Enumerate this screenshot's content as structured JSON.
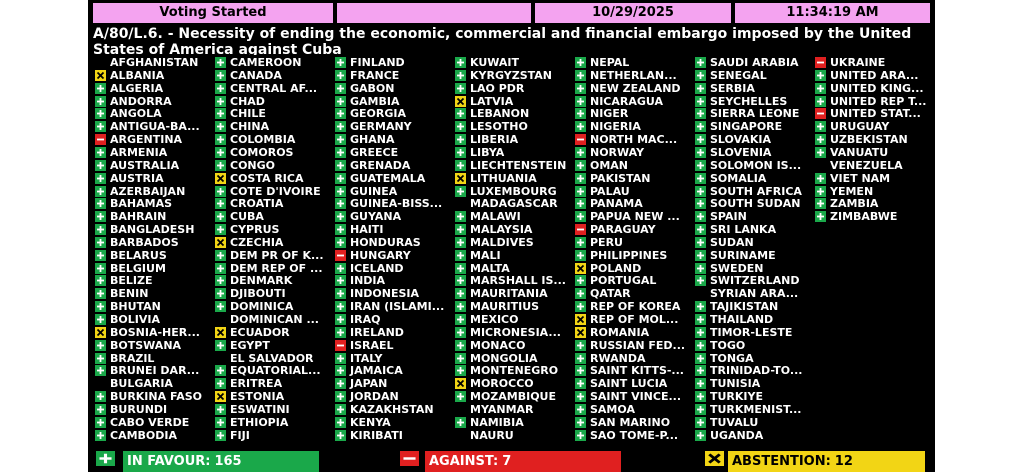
{
  "header": {
    "status": "Voting Started",
    "date": "10/29/2025",
    "time": "11:34:19 AM"
  },
  "title": "A/80/L.6. - Necessity of ending the economic, commercial and financial embargo imposed by the United States of America against Cuba",
  "members": [
    {
      "name": "AFGHANISTAN",
      "vote": null
    },
    {
      "name": "ALBANIA",
      "vote": "A"
    },
    {
      "name": "ALGERIA",
      "vote": "Y"
    },
    {
      "name": "ANDORRA",
      "vote": "Y"
    },
    {
      "name": "ANGOLA",
      "vote": "Y"
    },
    {
      "name": "ANTIGUA-BA...",
      "vote": "Y"
    },
    {
      "name": "ARGENTINA",
      "vote": "N"
    },
    {
      "name": "ARMENIA",
      "vote": "Y"
    },
    {
      "name": "AUSTRALIA",
      "vote": "Y"
    },
    {
      "name": "AUSTRIA",
      "vote": "Y"
    },
    {
      "name": "AZERBAIJAN",
      "vote": "Y"
    },
    {
      "name": "BAHAMAS",
      "vote": "Y"
    },
    {
      "name": "BAHRAIN",
      "vote": "Y"
    },
    {
      "name": "BANGLADESH",
      "vote": "Y"
    },
    {
      "name": "BARBADOS",
      "vote": "Y"
    },
    {
      "name": "BELARUS",
      "vote": "Y"
    },
    {
      "name": "BELGIUM",
      "vote": "Y"
    },
    {
      "name": "BELIZE",
      "vote": "Y"
    },
    {
      "name": "BENIN",
      "vote": "Y"
    },
    {
      "name": "BHUTAN",
      "vote": "Y"
    },
    {
      "name": "BOLIVIA",
      "vote": "Y"
    },
    {
      "name": "BOSNIA-HER...",
      "vote": "A"
    },
    {
      "name": "BOTSWANA",
      "vote": "Y"
    },
    {
      "name": "BRAZIL",
      "vote": "Y"
    },
    {
      "name": "BRUNEI DAR...",
      "vote": "Y"
    },
    {
      "name": "BULGARIA",
      "vote": null
    },
    {
      "name": "BURKINA FASO",
      "vote": "Y"
    },
    {
      "name": "BURUNDI",
      "vote": "Y"
    },
    {
      "name": "CABO VERDE",
      "vote": "Y"
    },
    {
      "name": "CAMBODIA",
      "vote": "Y"
    },
    {
      "name": "CAMEROON",
      "vote": "Y"
    },
    {
      "name": "CANADA",
      "vote": "Y"
    },
    {
      "name": "CENTRAL AF...",
      "vote": "Y"
    },
    {
      "name": "CHAD",
      "vote": "Y"
    },
    {
      "name": "CHILE",
      "vote": "Y"
    },
    {
      "name": "CHINA",
      "vote": "Y"
    },
    {
      "name": "COLOMBIA",
      "vote": "Y"
    },
    {
      "name": "COMOROS",
      "vote": "Y"
    },
    {
      "name": "CONGO",
      "vote": "Y"
    },
    {
      "name": "COSTA RICA",
      "vote": "A"
    },
    {
      "name": "COTE D'IVOIRE",
      "vote": "Y"
    },
    {
      "name": "CROATIA",
      "vote": "Y"
    },
    {
      "name": "CUBA",
      "vote": "Y"
    },
    {
      "name": "CYPRUS",
      "vote": "Y"
    },
    {
      "name": "CZECHIA",
      "vote": "A"
    },
    {
      "name": "DEM PR OF K...",
      "vote": "Y"
    },
    {
      "name": "DEM REP OF ...",
      "vote": "Y"
    },
    {
      "name": "DENMARK",
      "vote": "Y"
    },
    {
      "name": "DJIBOUTI",
      "vote": "Y"
    },
    {
      "name": "DOMINICA",
      "vote": "Y"
    },
    {
      "name": "DOMINICAN ...",
      "vote": null
    },
    {
      "name": "ECUADOR",
      "vote": "A"
    },
    {
      "name": "EGYPT",
      "vote": "Y"
    },
    {
      "name": "EL SALVADOR",
      "vote": null
    },
    {
      "name": "EQUATORIAL...",
      "vote": "Y"
    },
    {
      "name": "ERITREA",
      "vote": "Y"
    },
    {
      "name": "ESTONIA",
      "vote": "A"
    },
    {
      "name": "ESWATINI",
      "vote": "Y"
    },
    {
      "name": "ETHIOPIA",
      "vote": "Y"
    },
    {
      "name": "FIJI",
      "vote": "Y"
    },
    {
      "name": "FINLAND",
      "vote": "Y"
    },
    {
      "name": "FRANCE",
      "vote": "Y"
    },
    {
      "name": "GABON",
      "vote": "Y"
    },
    {
      "name": "GAMBIA",
      "vote": "Y"
    },
    {
      "name": "GEORGIA",
      "vote": "Y"
    },
    {
      "name": "GERMANY",
      "vote": "Y"
    },
    {
      "name": "GHANA",
      "vote": "Y"
    },
    {
      "name": "GREECE",
      "vote": "Y"
    },
    {
      "name": "GRENADA",
      "vote": "Y"
    },
    {
      "name": "GUATEMALA",
      "vote": "Y"
    },
    {
      "name": "GUINEA",
      "vote": "Y"
    },
    {
      "name": "GUINEA-BISS...",
      "vote": "Y"
    },
    {
      "name": "GUYANA",
      "vote": "Y"
    },
    {
      "name": "HAITI",
      "vote": "Y"
    },
    {
      "name": "HONDURAS",
      "vote": "Y"
    },
    {
      "name": "HUNGARY",
      "vote": "N"
    },
    {
      "name": "ICELAND",
      "vote": "Y"
    },
    {
      "name": "INDIA",
      "vote": "Y"
    },
    {
      "name": "INDONESIA",
      "vote": "Y"
    },
    {
      "name": "IRAN (ISLAMI...",
      "vote": "Y"
    },
    {
      "name": "IRAQ",
      "vote": "Y"
    },
    {
      "name": "IRELAND",
      "vote": "Y"
    },
    {
      "name": "ISRAEL",
      "vote": "N"
    },
    {
      "name": "ITALY",
      "vote": "Y"
    },
    {
      "name": "JAMAICA",
      "vote": "Y"
    },
    {
      "name": "JAPAN",
      "vote": "Y"
    },
    {
      "name": "JORDAN",
      "vote": "Y"
    },
    {
      "name": "KAZAKHSTAN",
      "vote": "Y"
    },
    {
      "name": "KENYA",
      "vote": "Y"
    },
    {
      "name": "KIRIBATI",
      "vote": "Y"
    },
    {
      "name": "KUWAIT",
      "vote": "Y"
    },
    {
      "name": "KYRGYZSTAN",
      "vote": "Y"
    },
    {
      "name": "LAO PDR",
      "vote": "Y"
    },
    {
      "name": "LATVIA",
      "vote": "A"
    },
    {
      "name": "LEBANON",
      "vote": "Y"
    },
    {
      "name": "LESOTHO",
      "vote": "Y"
    },
    {
      "name": "LIBERIA",
      "vote": "Y"
    },
    {
      "name": "LIBYA",
      "vote": "Y"
    },
    {
      "name": "LIECHTENSTEIN",
      "vote": "Y"
    },
    {
      "name": "LITHUANIA",
      "vote": "A"
    },
    {
      "name": "LUXEMBOURG",
      "vote": "Y"
    },
    {
      "name": "MADAGASCAR",
      "vote": null
    },
    {
      "name": "MALAWI",
      "vote": "Y"
    },
    {
      "name": "MALAYSIA",
      "vote": "Y"
    },
    {
      "name": "MALDIVES",
      "vote": "Y"
    },
    {
      "name": "MALI",
      "vote": "Y"
    },
    {
      "name": "MALTA",
      "vote": "Y"
    },
    {
      "name": "MARSHALL IS...",
      "vote": "Y"
    },
    {
      "name": "MAURITANIA",
      "vote": "Y"
    },
    {
      "name": "MAURITIUS",
      "vote": "Y"
    },
    {
      "name": "MEXICO",
      "vote": "Y"
    },
    {
      "name": "MICRONESIA...",
      "vote": "Y"
    },
    {
      "name": "MONACO",
      "vote": "Y"
    },
    {
      "name": "MONGOLIA",
      "vote": "Y"
    },
    {
      "name": "MONTENEGRO",
      "vote": "Y"
    },
    {
      "name": "MOROCCO",
      "vote": "A"
    },
    {
      "name": "MOZAMBIQUE",
      "vote": "Y"
    },
    {
      "name": "MYANMAR",
      "vote": null
    },
    {
      "name": "NAMIBIA",
      "vote": "Y"
    },
    {
      "name": "NAURU",
      "vote": null
    },
    {
      "name": "NEPAL",
      "vote": "Y"
    },
    {
      "name": "NETHERLAN...",
      "vote": "Y"
    },
    {
      "name": "NEW ZEALAND",
      "vote": "Y"
    },
    {
      "name": "NICARAGUA",
      "vote": "Y"
    },
    {
      "name": "NIGER",
      "vote": "Y"
    },
    {
      "name": "NIGERIA",
      "vote": "Y"
    },
    {
      "name": "NORTH MAC...",
      "vote": "N"
    },
    {
      "name": "NORWAY",
      "vote": "Y"
    },
    {
      "name": "OMAN",
      "vote": "Y"
    },
    {
      "name": "PAKISTAN",
      "vote": "Y"
    },
    {
      "name": "PALAU",
      "vote": "Y"
    },
    {
      "name": "PANAMA",
      "vote": "Y"
    },
    {
      "name": "PAPUA NEW ...",
      "vote": "Y"
    },
    {
      "name": "PARAGUAY",
      "vote": "N"
    },
    {
      "name": "PERU",
      "vote": "Y"
    },
    {
      "name": "PHILIPPINES",
      "vote": "Y"
    },
    {
      "name": "POLAND",
      "vote": "A"
    },
    {
      "name": "PORTUGAL",
      "vote": "Y"
    },
    {
      "name": "QATAR",
      "vote": "Y"
    },
    {
      "name": "REP OF KOREA",
      "vote": "Y"
    },
    {
      "name": "REP OF MOL...",
      "vote": "A"
    },
    {
      "name": "ROMANIA",
      "vote": "A"
    },
    {
      "name": "RUSSIAN FED...",
      "vote": "Y"
    },
    {
      "name": "RWANDA",
      "vote": "Y"
    },
    {
      "name": "SAINT KITTS-...",
      "vote": "Y"
    },
    {
      "name": "SAINT LUCIA",
      "vote": "Y"
    },
    {
      "name": "SAINT VINCE...",
      "vote": "Y"
    },
    {
      "name": "SAMOA",
      "vote": "Y"
    },
    {
      "name": "SAN MARINO",
      "vote": "Y"
    },
    {
      "name": "SAO TOME-P...",
      "vote": "Y"
    },
    {
      "name": "SAUDI ARABIA",
      "vote": "Y"
    },
    {
      "name": "SENEGAL",
      "vote": "Y"
    },
    {
      "name": "SERBIA",
      "vote": "Y"
    },
    {
      "name": "SEYCHELLES",
      "vote": "Y"
    },
    {
      "name": "SIERRA LEONE",
      "vote": "Y"
    },
    {
      "name": "SINGAPORE",
      "vote": "Y"
    },
    {
      "name": "SLOVAKIA",
      "vote": "Y"
    },
    {
      "name": "SLOVENIA",
      "vote": "Y"
    },
    {
      "name": "SOLOMON IS...",
      "vote": "Y"
    },
    {
      "name": "SOMALIA",
      "vote": "Y"
    },
    {
      "name": "SOUTH AFRICA",
      "vote": "Y"
    },
    {
      "name": "SOUTH SUDAN",
      "vote": "Y"
    },
    {
      "name": "SPAIN",
      "vote": "Y"
    },
    {
      "name": "SRI LANKA",
      "vote": "Y"
    },
    {
      "name": "SUDAN",
      "vote": "Y"
    },
    {
      "name": "SURINAME",
      "vote": "Y"
    },
    {
      "name": "SWEDEN",
      "vote": "Y"
    },
    {
      "name": "SWITZERLAND",
      "vote": "Y"
    },
    {
      "name": "SYRIAN ARA...",
      "vote": null
    },
    {
      "name": "TAJIKISTAN",
      "vote": "Y"
    },
    {
      "name": "THAILAND",
      "vote": "Y"
    },
    {
      "name": "TIMOR-LESTE",
      "vote": "Y"
    },
    {
      "name": "TOGO",
      "vote": "Y"
    },
    {
      "name": "TONGA",
      "vote": "Y"
    },
    {
      "name": "TRINIDAD-TO...",
      "vote": "Y"
    },
    {
      "name": "TUNISIA",
      "vote": "Y"
    },
    {
      "name": "TURKIYE",
      "vote": "Y"
    },
    {
      "name": "TURKMENIST...",
      "vote": "Y"
    },
    {
      "name": "TUVALU",
      "vote": "Y"
    },
    {
      "name": "UGANDA",
      "vote": "Y"
    },
    {
      "name": "UKRAINE",
      "vote": "N"
    },
    {
      "name": "UNITED ARA...",
      "vote": "Y"
    },
    {
      "name": "UNITED KING...",
      "vote": "Y"
    },
    {
      "name": "UNITED REP T...",
      "vote": "Y"
    },
    {
      "name": "UNITED STAT...",
      "vote": "N"
    },
    {
      "name": "URUGUAY",
      "vote": "Y"
    },
    {
      "name": "UZBEKISTAN",
      "vote": "Y"
    },
    {
      "name": "VANUATU",
      "vote": "Y"
    },
    {
      "name": "VENEZUELA",
      "vote": null
    },
    {
      "name": "VIET NAM",
      "vote": "Y"
    },
    {
      "name": "YEMEN",
      "vote": "Y"
    },
    {
      "name": "ZAMBIA",
      "vote": "Y"
    },
    {
      "name": "ZIMBABWE",
      "vote": "Y"
    }
  ],
  "totals": [
    {
      "label": "IN FAVOUR:",
      "count": 165,
      "vote": "Y"
    },
    {
      "label": "AGAINST:",
      "count": 7,
      "vote": "N"
    },
    {
      "label": "ABSTENTION:",
      "count": 12,
      "vote": "A"
    }
  ]
}
